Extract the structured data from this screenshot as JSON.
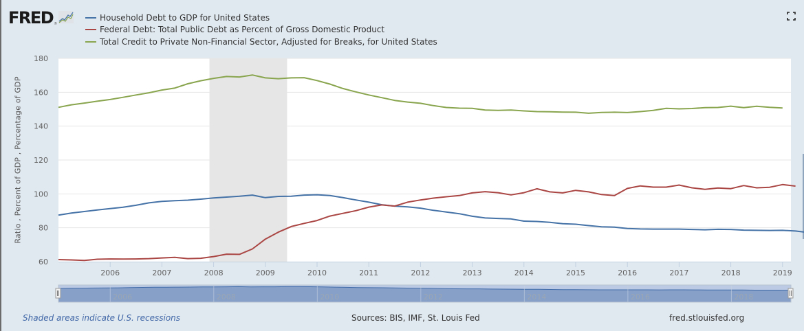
{
  "header": {
    "logo_text": "FRED",
    "logo_reg": "®",
    "fullscreen_icon": "fullscreen-icon"
  },
  "footer": {
    "recession_note": "Shaded areas indicate U.S. recessions",
    "sources": "Sources: BIS, IMF, St. Louis Fed",
    "site": "fred.stlouisfed.org"
  },
  "colors": {
    "background": "#E1E9F0",
    "plot_background": "#FFFFFF",
    "recession_band": "#E6E6E6",
    "household": "#4572A7",
    "federal": "#AA4643",
    "credit": "#89A54E",
    "navigator_fill": "#87A0C8",
    "navigator_mask": "#BCCAE3"
  },
  "chart_data": {
    "type": "line",
    "title": "",
    "xlabel": "",
    "ylabel": "Ratio , Percent of GDP , Percentage of GDP",
    "xlim": [
      2005.0,
      2019.15
    ],
    "ylim": [
      60,
      180
    ],
    "yticks": [
      60,
      80,
      100,
      120,
      140,
      160,
      180
    ],
    "xticks": [
      2006,
      2007,
      2008,
      2009,
      2010,
      2011,
      2012,
      2013,
      2014,
      2015,
      2016,
      2017,
      2018,
      2019
    ],
    "navigator_ticks": [
      2006,
      2008,
      2010,
      2012,
      2014,
      2016,
      2018
    ],
    "grid": true,
    "legend_position": "top-left",
    "recessions": [
      {
        "start": 2007.92,
        "end": 2009.42
      }
    ],
    "x_start": 2005.0,
    "x_step": 0.25,
    "series": [
      {
        "name": "Household Debt to GDP for United States",
        "color_key": "household",
        "values": [
          87.5,
          88.7,
          89.6,
          90.5,
          91.3,
          92.1,
          93.3,
          94.7,
          95.6,
          96.0,
          96.3,
          96.9,
          97.6,
          98.1,
          98.6,
          99.3,
          97.8,
          98.5,
          98.6,
          99.3,
          99.5,
          99.0,
          97.8,
          96.4,
          95.1,
          93.6,
          92.8,
          92.3,
          91.6,
          90.3,
          89.3,
          88.3,
          86.8,
          85.8,
          85.5,
          85.2,
          83.9,
          83.7,
          83.2,
          82.4,
          82.1,
          81.3,
          80.6,
          80.4,
          79.6,
          79.3,
          79.2,
          79.2,
          79.2,
          79.0,
          78.8,
          79.1,
          79.0,
          78.6,
          78.5,
          78.4,
          78.5,
          78.1,
          77.2,
          77.1,
          77.0,
          76.1
        ]
      },
      {
        "name": "Federal Debt: Total Public Debt as Percent of Gross Domestic Product",
        "color_key": "federal",
        "values": [
          61.2,
          61.0,
          60.7,
          61.4,
          61.6,
          61.5,
          61.6,
          61.8,
          62.2,
          62.5,
          61.8,
          62.0,
          63.0,
          64.4,
          64.3,
          67.5,
          73.3,
          77.4,
          80.7,
          82.6,
          84.3,
          86.9,
          88.5,
          90.1,
          92.2,
          93.5,
          92.8,
          95.1,
          96.4,
          97.5,
          98.3,
          99.0,
          100.6,
          101.3,
          100.7,
          99.4,
          100.7,
          103.0,
          101.2,
          100.6,
          102.1,
          101.2,
          99.6,
          99.0,
          103.2,
          104.7,
          104.0,
          104.0,
          105.2,
          103.6,
          102.7,
          103.5,
          103.1,
          104.9,
          103.6,
          103.9,
          105.5,
          104.6
        ]
      },
      {
        "name": "Total Credit to Private Non-Financial Sector, Adjusted for Breaks, for United States",
        "color_key": "credit",
        "values": [
          151.1,
          152.6,
          153.6,
          154.7,
          155.7,
          157.0,
          158.4,
          159.7,
          161.3,
          162.5,
          165.0,
          166.8,
          168.2,
          169.3,
          169.0,
          170.2,
          168.5,
          168.0,
          168.5,
          168.6,
          166.9,
          164.8,
          162.2,
          160.2,
          158.4,
          156.8,
          155.2,
          154.2,
          153.5,
          152.1,
          151.0,
          150.6,
          150.5,
          149.5,
          149.3,
          149.5,
          149.0,
          148.6,
          148.5,
          148.3,
          148.2,
          147.6,
          148.1,
          148.2,
          148.0,
          148.6,
          149.3,
          150.5,
          150.2,
          150.4,
          150.9,
          151.0,
          151.8,
          150.9,
          151.7,
          151.1,
          150.7
        ]
      }
    ]
  }
}
